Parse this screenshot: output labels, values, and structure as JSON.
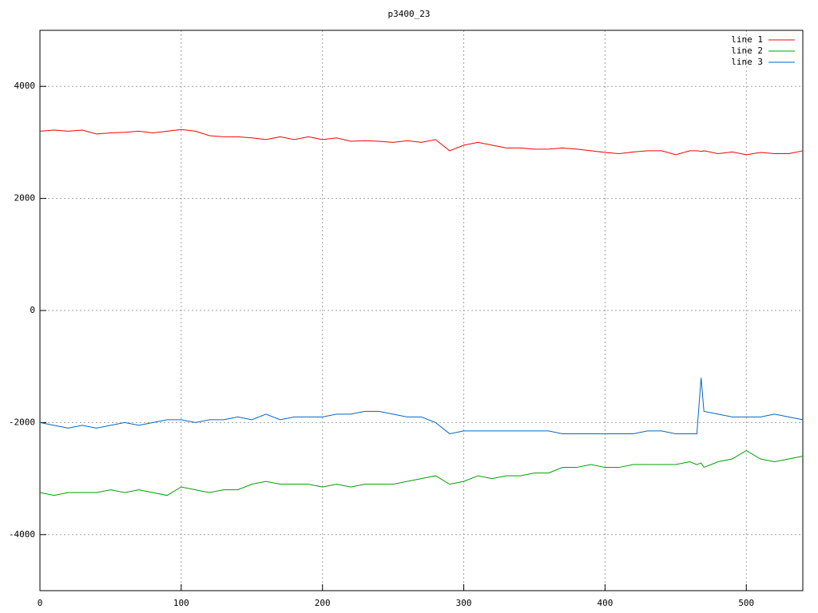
{
  "chart_data": {
    "type": "line",
    "title": "p3400_23",
    "x": [
      0,
      10,
      20,
      30,
      40,
      50,
      60,
      70,
      80,
      90,
      100,
      110,
      120,
      130,
      140,
      150,
      160,
      170,
      180,
      190,
      200,
      210,
      220,
      230,
      240,
      250,
      260,
      270,
      280,
      290,
      300,
      310,
      320,
      330,
      340,
      350,
      360,
      370,
      380,
      390,
      400,
      410,
      420,
      430,
      440,
      450,
      460,
      465,
      468,
      470,
      480,
      490,
      500,
      510,
      520,
      530,
      540
    ],
    "series": [
      {
        "name": "line 1",
        "color": "#ff0000",
        "values": [
          3200,
          3220,
          3200,
          3220,
          3150,
          3170,
          3180,
          3200,
          3170,
          3200,
          3230,
          3200,
          3120,
          3100,
          3100,
          3080,
          3050,
          3100,
          3050,
          3100,
          3050,
          3080,
          3020,
          3030,
          3020,
          3000,
          3030,
          3000,
          3050,
          2850,
          2950,
          3000,
          2950,
          2900,
          2900,
          2880,
          2880,
          2900,
          2880,
          2850,
          2820,
          2800,
          2830,
          2850,
          2850,
          2780,
          2850,
          2850,
          2840,
          2850,
          2800,
          2830,
          2780,
          2820,
          2800,
          2800,
          2850
        ]
      },
      {
        "name": "line 2",
        "color": "#00a000",
        "values": [
          -3250,
          -3300,
          -3250,
          -3250,
          -3250,
          -3200,
          -3250,
          -3200,
          -3250,
          -3300,
          -3150,
          -3200,
          -3250,
          -3200,
          -3200,
          -3100,
          -3050,
          -3100,
          -3100,
          -3100,
          -3150,
          -3100,
          -3150,
          -3100,
          -3100,
          -3100,
          -3050,
          -3000,
          -2950,
          -3100,
          -3050,
          -2950,
          -3000,
          -2950,
          -2950,
          -2900,
          -2900,
          -2800,
          -2800,
          -2750,
          -2800,
          -2800,
          -2750,
          -2750,
          -2750,
          -2750,
          -2700,
          -2750,
          -2720,
          -2800,
          -2700,
          -2650,
          -2500,
          -2650,
          -2700,
          -2650,
          -2600
        ]
      },
      {
        "name": "line 3",
        "color": "#0066cc",
        "values": [
          -2000,
          -2050,
          -2100,
          -2050,
          -2100,
          -2050,
          -2000,
          -2050,
          -2000,
          -1950,
          -1950,
          -2000,
          -1950,
          -1950,
          -1900,
          -1950,
          -1850,
          -1950,
          -1900,
          -1900,
          -1900,
          -1850,
          -1850,
          -1800,
          -1800,
          -1850,
          -1900,
          -1900,
          -2000,
          -2200,
          -2150,
          -2150,
          -2150,
          -2150,
          -2150,
          -2150,
          -2150,
          -2200,
          -2200,
          -2200,
          -2200,
          -2200,
          -2200,
          -2150,
          -2150,
          -2200,
          -2200,
          -2200,
          -1200,
          -1800,
          -1850,
          -1900,
          -1900,
          -1900,
          -1850,
          -1900,
          -1950
        ]
      }
    ],
    "xlim": [
      0,
      540
    ],
    "ylim": [
      -5000,
      5000
    ],
    "xticks": [
      0,
      100,
      200,
      300,
      400,
      500
    ],
    "yticks": [
      -4000,
      -2000,
      0,
      2000,
      4000
    ],
    "grid": true,
    "legend": "upper-right"
  }
}
